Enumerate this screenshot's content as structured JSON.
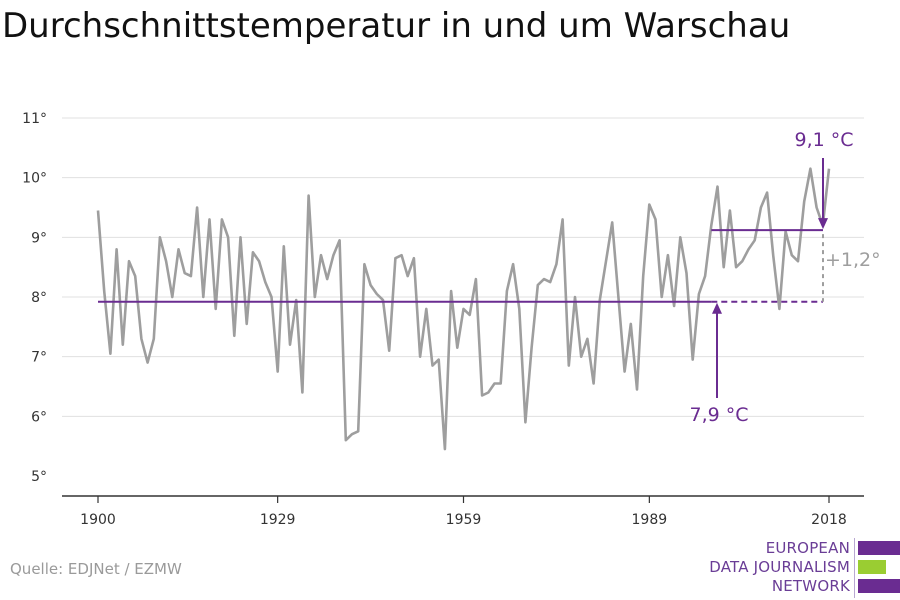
{
  "header": {
    "title": "Durchschnittstemperatur in und um Warschau"
  },
  "footer": {
    "source": "Quelle: EDJNet / EZMW"
  },
  "logo": {
    "lines": [
      "EUROPEAN",
      "DATA JOURNALISM",
      "NETWORK"
    ],
    "colors": {
      "purple": "#6a2c91",
      "green": "#9acd32"
    }
  },
  "chart_data": {
    "type": "line",
    "title": "Durchschnittstemperatur in und um Warschau",
    "xlabel": "",
    "ylabel": "",
    "xlim": [
      1900,
      2018
    ],
    "ylim": [
      5,
      11
    ],
    "x_ticks": [
      1900,
      1929,
      1959,
      1989,
      2018
    ],
    "x_tick_labels": [
      "1900",
      "1929",
      "1959",
      "1989",
      "2018"
    ],
    "y_ticks": [
      5,
      6,
      7,
      8,
      9,
      10,
      11
    ],
    "y_tick_labels": [
      "5°",
      "6°",
      "7°",
      "8°",
      "9°",
      "10°",
      "11°"
    ],
    "grid": "horizontal",
    "line_color": "#9e9e9e",
    "accent_color": "#6a2c91",
    "x": [
      1900,
      1901,
      1902,
      1903,
      1904,
      1905,
      1906,
      1907,
      1908,
      1909,
      1910,
      1911,
      1912,
      1913,
      1914,
      1915,
      1916,
      1917,
      1918,
      1919,
      1920,
      1921,
      1922,
      1923,
      1924,
      1925,
      1926,
      1927,
      1928,
      1929,
      1930,
      1931,
      1932,
      1933,
      1934,
      1935,
      1936,
      1937,
      1938,
      1939,
      1940,
      1941,
      1942,
      1943,
      1944,
      1945,
      1946,
      1947,
      1948,
      1949,
      1950,
      1951,
      1952,
      1953,
      1954,
      1955,
      1956,
      1957,
      1958,
      1959,
      1960,
      1961,
      1962,
      1963,
      1964,
      1965,
      1966,
      1967,
      1968,
      1969,
      1970,
      1971,
      1972,
      1973,
      1974,
      1975,
      1976,
      1977,
      1978,
      1979,
      1980,
      1981,
      1982,
      1983,
      1984,
      1985,
      1986,
      1987,
      1988,
      1989,
      1990,
      1991,
      1992,
      1993,
      1994,
      1995,
      1996,
      1997,
      1998,
      1999,
      2000,
      2001,
      2002,
      2003,
      2004,
      2005,
      2006,
      2007,
      2008,
      2009,
      2010,
      2011,
      2012,
      2013,
      2014,
      2015,
      2016,
      2017,
      2018
    ],
    "series": [
      {
        "values": [
          9.45,
          8.1,
          7.05,
          8.8,
          7.2,
          8.6,
          8.35,
          7.3,
          6.9,
          7.3,
          9.0,
          8.6,
          8.0,
          8.8,
          8.4,
          8.35,
          9.5,
          8.0,
          9.3,
          7.8,
          9.3,
          9.0,
          7.35,
          9.0,
          7.55,
          8.75,
          8.6,
          8.25,
          8.0,
          6.75,
          8.85,
          7.2,
          7.95,
          6.4,
          9.7,
          8.0,
          8.7,
          8.3,
          8.7,
          8.95,
          5.6,
          5.7,
          5.75,
          8.55,
          8.2,
          8.05,
          7.95,
          7.1,
          8.65,
          8.7,
          8.35,
          8.65,
          7.0,
          7.8,
          6.85,
          6.95,
          5.45,
          8.1,
          7.15,
          7.8,
          7.7,
          8.3,
          6.35,
          6.4,
          6.55,
          6.55,
          8.1,
          8.55,
          7.8,
          5.9,
          7.15,
          8.2,
          8.3,
          8.25,
          8.55,
          9.3,
          6.85,
          8.0,
          7.0,
          7.3,
          6.55,
          7.95,
          8.6,
          9.25,
          8.0,
          6.75,
          7.55,
          6.45,
          8.35,
          9.55,
          9.3,
          8.0,
          8.7,
          7.85,
          9.0,
          8.4,
          6.95,
          8.05,
          8.35,
          9.2,
          9.85,
          8.5,
          9.45,
          8.5,
          8.6,
          8.8,
          8.95,
          9.5,
          9.75,
          8.7,
          7.8,
          9.1,
          8.7,
          8.6,
          9.6,
          10.15,
          9.5,
          9.2,
          10.15
        ]
      }
    ],
    "baseline": {
      "label": "7,9 °C",
      "value": 7.92,
      "from": 1900,
      "to": 2018
    },
    "recent_mean": {
      "label": "9,1 °C",
      "value": 9.12,
      "from": 1999,
      "to": 2018
    },
    "difference_label": "+1,2°"
  }
}
